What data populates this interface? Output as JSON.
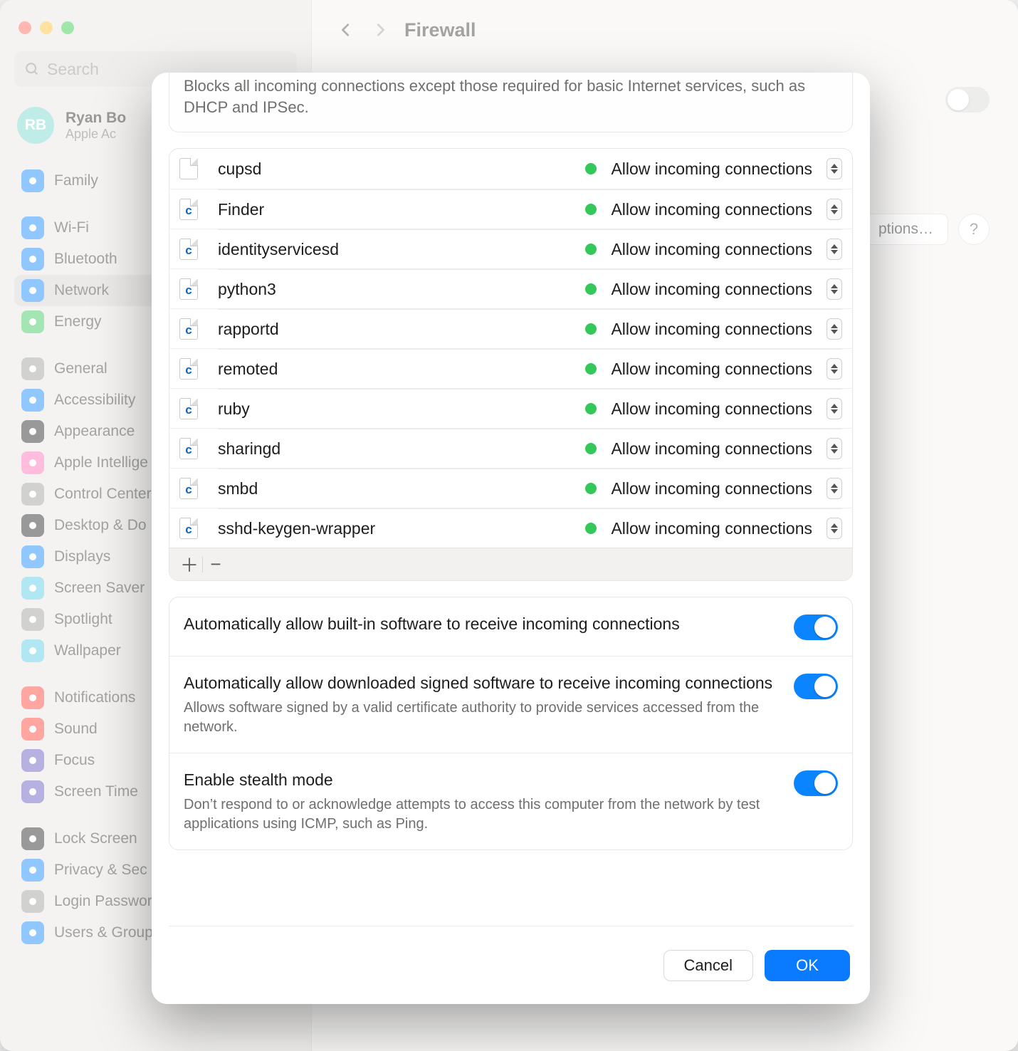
{
  "window": {
    "search_placeholder": "Search",
    "user": {
      "initials": "RB",
      "name": "Ryan Bo",
      "subtitle": "Apple Ac"
    },
    "page_title": "Firewall",
    "options_label": "ptions…",
    "help_label": "?"
  },
  "sidebar": {
    "items": [
      {
        "label": "Family",
        "color": "#0a84ff",
        "glyph": "family"
      },
      {
        "gap": true
      },
      {
        "label": "Wi-Fi",
        "color": "#0a84ff",
        "glyph": "wifi"
      },
      {
        "label": "Bluetooth",
        "color": "#0a84ff",
        "glyph": "bluetooth"
      },
      {
        "label": "Network",
        "color": "#0a84ff",
        "glyph": "network",
        "selected": true
      },
      {
        "label": "Energy",
        "color": "#34c759",
        "glyph": "bolt"
      },
      {
        "gap": true
      },
      {
        "label": "General",
        "color": "#9a9a98",
        "glyph": "gear"
      },
      {
        "label": "Accessibility",
        "color": "#0a84ff",
        "glyph": "accessibility"
      },
      {
        "label": "Appearance",
        "color": "#1d1d1f",
        "glyph": "appearance"
      },
      {
        "label": "Apple Intellige",
        "color": "#ff6bb3",
        "glyph": "ai"
      },
      {
        "label": "Control Center",
        "color": "#9a9a98",
        "glyph": "control"
      },
      {
        "label": "Desktop & Do",
        "color": "#1d1d1f",
        "glyph": "desktop"
      },
      {
        "label": "Displays",
        "color": "#0a84ff",
        "glyph": "display"
      },
      {
        "label": "Screen Saver",
        "color": "#52c7e4",
        "glyph": "screensaver"
      },
      {
        "label": "Spotlight",
        "color": "#9a9a98",
        "glyph": "spotlight"
      },
      {
        "label": "Wallpaper",
        "color": "#52c7e4",
        "glyph": "wallpaper"
      },
      {
        "gap": true
      },
      {
        "label": "Notifications",
        "color": "#ff3b30",
        "glyph": "bell"
      },
      {
        "label": "Sound",
        "color": "#ff3b30",
        "glyph": "sound"
      },
      {
        "label": "Focus",
        "color": "#6052bf",
        "glyph": "focus"
      },
      {
        "label": "Screen Time",
        "color": "#6052bf",
        "glyph": "screentime"
      },
      {
        "gap": true
      },
      {
        "label": "Lock Screen",
        "color": "#1d1d1f",
        "glyph": "lock"
      },
      {
        "label": "Privacy & Sec",
        "color": "#0a84ff",
        "glyph": "privacy"
      },
      {
        "label": "Login Password",
        "color": "#9a9a98",
        "glyph": "key"
      },
      {
        "label": "Users & Groups",
        "color": "#0a84ff",
        "glyph": "users"
      }
    ]
  },
  "sheet": {
    "info": "Blocks all incoming connections except those required for basic Internet services, such as DHCP and IPSec.",
    "status_allow": "Allow incoming connections",
    "apps": [
      {
        "name": "cupsd",
        "icon": "doc"
      },
      {
        "name": "Finder",
        "icon": "c"
      },
      {
        "name": "identityservicesd",
        "icon": "c"
      },
      {
        "name": "python3",
        "icon": "c"
      },
      {
        "name": "rapportd",
        "icon": "c"
      },
      {
        "name": "remoted",
        "icon": "c"
      },
      {
        "name": "ruby",
        "icon": "c"
      },
      {
        "name": "sharingd",
        "icon": "c"
      },
      {
        "name": "smbd",
        "icon": "c"
      },
      {
        "name": "sshd-keygen-wrapper",
        "icon": "c"
      }
    ],
    "toggles": [
      {
        "title": "Automatically allow built-in software to receive incoming connections",
        "desc": "",
        "on": true
      },
      {
        "title": "Automatically allow downloaded signed software to receive incoming connections",
        "desc": "Allows software signed by a valid certificate authority to provide services accessed from the network.",
        "on": true
      },
      {
        "title": "Enable stealth mode",
        "desc": "Don’t respond to or acknowledge attempts to access this computer from the network by test applications using ICMP, such as Ping.",
        "on": true
      }
    ],
    "cancel": "Cancel",
    "ok": "OK"
  }
}
